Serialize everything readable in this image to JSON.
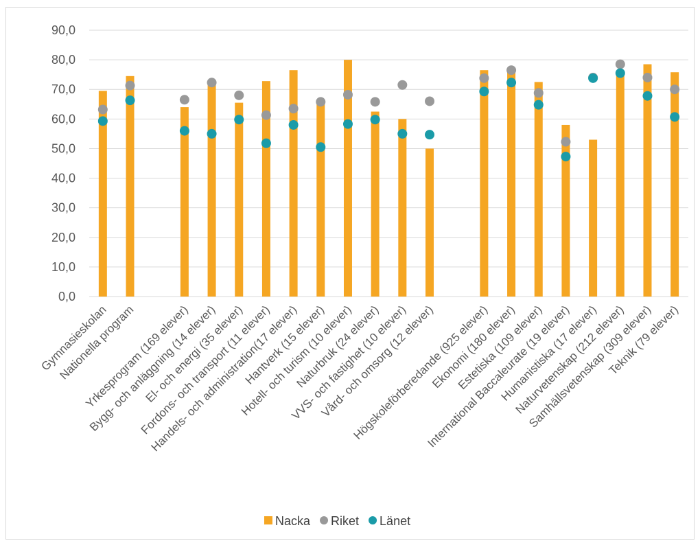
{
  "chart_data": {
    "type": "bar",
    "title": "",
    "xlabel": "",
    "ylabel": "",
    "ylim": [
      0,
      90
    ],
    "y_ticks": [
      "0,0",
      "10,0",
      "20,0",
      "30,0",
      "40,0",
      "50,0",
      "60,0",
      "70,0",
      "80,0",
      "90,0"
    ],
    "grid": true,
    "legend_position": "bottom",
    "categories": [
      "Gymnasieskolan",
      "Nationella program",
      "",
      "Yrkesprogram (169 elever)",
      "Bygg- och anläggning (14 elever)",
      "El- och energi (35 elever)",
      "Fordons- och transport (11 elever)",
      "Handels- och administration(17 elever)",
      "Hantverk (15 elever)",
      "Hotell- och turism (10 elever)",
      "Naturbruk (24 elever)",
      "VVS- och fastighet (10 elever)",
      "Vård- och omsorg (12 elever)",
      "",
      "Högskoleförberedande (925 elever)",
      "Ekonomi (180 elever)",
      "Estetiska (109 elever)",
      "International Baccaleurate (19 elever)",
      "Humanistiska (17 elever)",
      "Naturvetenskap (212 elever)",
      "Samhällsvetenskap (309 elever)",
      "Teknik (79 elever)"
    ],
    "series": [
      {
        "name": "Nacka",
        "kind": "bar",
        "color": "#F5A623",
        "values": [
          69.5,
          74.5,
          null,
          64.0,
          72.0,
          65.5,
          72.8,
          76.5,
          65.0,
          80.0,
          62.5,
          60.0,
          50.0,
          null,
          76.5,
          77.0,
          72.5,
          58.0,
          53.0,
          76.0,
          78.5,
          75.8
        ]
      },
      {
        "name": "Riket",
        "kind": "dot",
        "color": "#999999",
        "values": [
          63.2,
          71.3,
          null,
          66.5,
          72.3,
          68.0,
          61.3,
          63.5,
          65.8,
          68.2,
          65.8,
          71.5,
          66.0,
          null,
          73.8,
          76.5,
          68.8,
          52.3,
          74.0,
          78.5,
          74.0,
          70.0
        ]
      },
      {
        "name": "Länet",
        "kind": "dot",
        "color": "#1A9BA8",
        "values": [
          59.3,
          66.3,
          null,
          56.0,
          55.0,
          59.8,
          51.8,
          58.0,
          50.5,
          58.3,
          59.8,
          55.0,
          54.7,
          null,
          69.3,
          72.3,
          64.8,
          47.3,
          73.8,
          75.5,
          67.8,
          60.7
        ]
      }
    ]
  }
}
